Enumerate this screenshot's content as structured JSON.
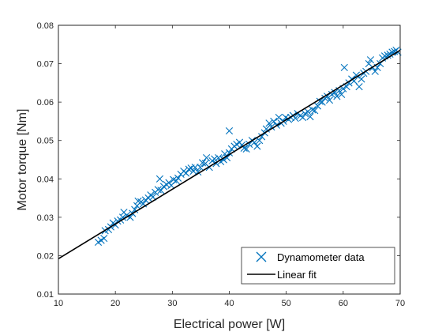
{
  "chart_data": {
    "type": "scatter",
    "title": "",
    "xlabel": "Electrical power [W]",
    "ylabel": "Motor torque [Nm]",
    "xlim": [
      10,
      70
    ],
    "ylim": [
      0.01,
      0.08
    ],
    "xticks": [
      10,
      20,
      30,
      40,
      50,
      60,
      70
    ],
    "yticks": [
      0.01,
      0.02,
      0.03,
      0.04,
      0.05,
      0.06,
      0.07,
      0.08
    ],
    "grid": false,
    "legend_position": "bottom-right",
    "colors": {
      "scatter": "#0072BD",
      "fit": "#000000",
      "axes": "#262626"
    },
    "series": [
      {
        "name": "Dynamometer data",
        "kind": "scatter",
        "marker": "x",
        "points": [
          [
            17.0,
            0.0235
          ],
          [
            17.5,
            0.024
          ],
          [
            18.0,
            0.0245
          ],
          [
            18.2,
            0.0265
          ],
          [
            18.8,
            0.0268
          ],
          [
            19.2,
            0.0275
          ],
          [
            19.6,
            0.0285
          ],
          [
            20.0,
            0.028
          ],
          [
            20.4,
            0.029
          ],
          [
            20.9,
            0.0293
          ],
          [
            21.3,
            0.03
          ],
          [
            21.5,
            0.0313
          ],
          [
            22.0,
            0.0305
          ],
          [
            22.6,
            0.03
          ],
          [
            23.0,
            0.031
          ],
          [
            23.4,
            0.032
          ],
          [
            23.8,
            0.033
          ],
          [
            24.0,
            0.0342
          ],
          [
            24.5,
            0.034
          ],
          [
            24.9,
            0.0335
          ],
          [
            25.3,
            0.0345
          ],
          [
            25.8,
            0.035
          ],
          [
            26.2,
            0.0358
          ],
          [
            26.6,
            0.0353
          ],
          [
            27.0,
            0.0365
          ],
          [
            27.5,
            0.0372
          ],
          [
            27.8,
            0.04
          ],
          [
            28.0,
            0.037
          ],
          [
            28.5,
            0.038
          ],
          [
            29.0,
            0.0385
          ],
          [
            29.4,
            0.039
          ],
          [
            29.8,
            0.0383
          ],
          [
            30.2,
            0.0398
          ],
          [
            30.7,
            0.0395
          ],
          [
            31.0,
            0.0402
          ],
          [
            31.5,
            0.0412
          ],
          [
            32.0,
            0.042
          ],
          [
            32.4,
            0.0415
          ],
          [
            32.9,
            0.0425
          ],
          [
            33.3,
            0.0428
          ],
          [
            33.7,
            0.042
          ],
          [
            34.0,
            0.043
          ],
          [
            34.5,
            0.0418
          ],
          [
            34.9,
            0.043
          ],
          [
            35.3,
            0.0442
          ],
          [
            35.8,
            0.044
          ],
          [
            36.0,
            0.0455
          ],
          [
            36.5,
            0.043
          ],
          [
            37.0,
            0.0447
          ],
          [
            37.4,
            0.0452
          ],
          [
            37.7,
            0.044
          ],
          [
            38.1,
            0.0455
          ],
          [
            38.5,
            0.0445
          ],
          [
            39.0,
            0.045
          ],
          [
            39.2,
            0.0465
          ],
          [
            39.6,
            0.0455
          ],
          [
            40.0,
            0.0468
          ],
          [
            40.0,
            0.0525
          ],
          [
            40.4,
            0.0478
          ],
          [
            40.9,
            0.0485
          ],
          [
            41.3,
            0.049
          ],
          [
            41.8,
            0.0495
          ],
          [
            42.2,
            0.0488
          ],
          [
            42.6,
            0.048
          ],
          [
            43.0,
            0.0478
          ],
          [
            43.5,
            0.049
          ],
          [
            44.0,
            0.05
          ],
          [
            44.4,
            0.0495
          ],
          [
            44.9,
            0.0485
          ],
          [
            45.3,
            0.05
          ],
          [
            45.7,
            0.051
          ],
          [
            46.2,
            0.052
          ],
          [
            46.5,
            0.053
          ],
          [
            47.0,
            0.0545
          ],
          [
            47.4,
            0.0535
          ],
          [
            47.8,
            0.055
          ],
          [
            48.3,
            0.054
          ],
          [
            48.7,
            0.056
          ],
          [
            49.1,
            0.0545
          ],
          [
            49.5,
            0.055
          ],
          [
            49.9,
            0.056
          ],
          [
            50.4,
            0.0555
          ],
          [
            50.8,
            0.056
          ],
          [
            51.2,
            0.0565
          ],
          [
            51.6,
            0.0558
          ],
          [
            52.0,
            0.057
          ],
          [
            52.5,
            0.0565
          ],
          [
            52.9,
            0.056
          ],
          [
            53.3,
            0.057
          ],
          [
            53.8,
            0.0575
          ],
          [
            54.2,
            0.0562
          ],
          [
            54.6,
            0.058
          ],
          [
            55.0,
            0.0578
          ],
          [
            55.5,
            0.059
          ],
          [
            55.9,
            0.0602
          ],
          [
            56.3,
            0.06
          ],
          [
            56.8,
            0.061
          ],
          [
            57.2,
            0.0615
          ],
          [
            57.6,
            0.0605
          ],
          [
            58.0,
            0.062
          ],
          [
            58.5,
            0.0625
          ],
          [
            58.9,
            0.0615
          ],
          [
            59.3,
            0.063
          ],
          [
            59.7,
            0.062
          ],
          [
            60.0,
            0.0635
          ],
          [
            60.2,
            0.069
          ],
          [
            60.6,
            0.064
          ],
          [
            61.0,
            0.065
          ],
          [
            61.5,
            0.066
          ],
          [
            61.9,
            0.0655
          ],
          [
            62.3,
            0.067
          ],
          [
            62.8,
            0.064
          ],
          [
            63.2,
            0.066
          ],
          [
            63.6,
            0.0675
          ],
          [
            64.0,
            0.068
          ],
          [
            64.5,
            0.07
          ],
          [
            64.8,
            0.071
          ],
          [
            65.2,
            0.069
          ],
          [
            65.6,
            0.068
          ],
          [
            66.0,
            0.069
          ],
          [
            66.5,
            0.07
          ],
          [
            66.9,
            0.0715
          ],
          [
            67.3,
            0.072
          ],
          [
            67.8,
            0.0722
          ],
          [
            68.2,
            0.0725
          ],
          [
            68.6,
            0.073
          ],
          [
            69.0,
            0.0732
          ],
          [
            69.3,
            0.0735
          ],
          [
            69.6,
            0.073
          ]
        ]
      },
      {
        "name": "Linear fit",
        "kind": "line",
        "x": [
          10,
          70
        ],
        "y": [
          0.0192,
          0.0735
        ]
      }
    ]
  }
}
